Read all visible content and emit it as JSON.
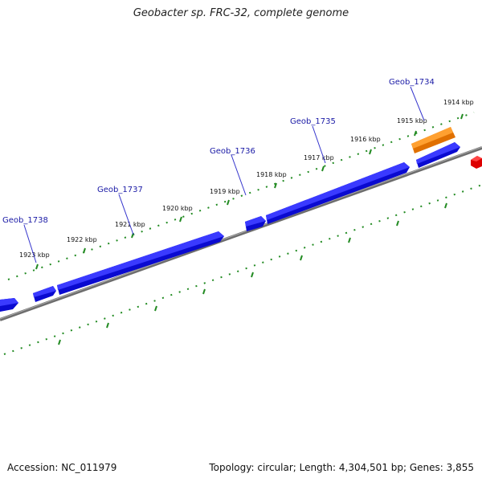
{
  "title": "Geobacter sp. FRC-32, complete genome",
  "footer": {
    "accession": "Accession: NC_011979",
    "stats": "Topology: circular; Length: 4,304,501 bp; Genes: 3,855"
  },
  "ruler": {
    "labels": [
      "1923 kbp",
      "1922 kbp",
      "1921 kbp",
      "1920 kbp",
      "1919 kbp",
      "1918 kbp",
      "1917 kbp",
      "1916 kbp",
      "1915 kbp",
      "1914 kbp"
    ]
  },
  "genes": [
    {
      "label": "Geob_1738",
      "color": "#1010e0"
    },
    {
      "label": "Geob_1737",
      "color": "#1010e0"
    },
    {
      "label": "Geob_1736",
      "color": "#1010e0"
    },
    {
      "label": "Geob_1735",
      "color": "#1010e0"
    },
    {
      "label": "Geob_1734",
      "color": "#1010e0"
    }
  ],
  "colors": {
    "gene": "#1010e0",
    "gene_highlight": "#f08000",
    "feature_red": "#ee1111",
    "backbone": "#777777",
    "ticks": "#228b22",
    "label_line": "#3333cc"
  }
}
